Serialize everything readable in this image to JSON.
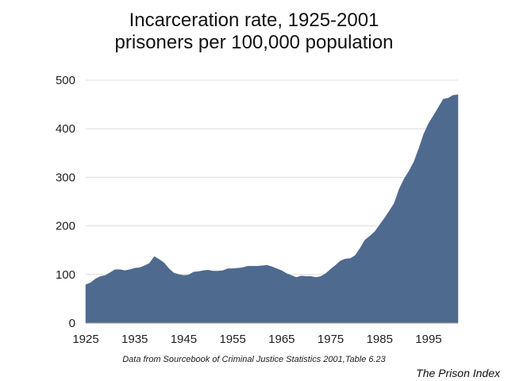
{
  "chart_data": {
    "type": "area",
    "title": "Incarceration rate, 1925-2001",
    "subtitle": "prisoners per 100,000 population",
    "xlim": [
      1925,
      2001
    ],
    "ylim": [
      0,
      500
    ],
    "x_ticks": [
      "1925",
      "1935",
      "1945",
      "1955",
      "1965",
      "1975",
      "1985",
      "1995"
    ],
    "y_ticks": [
      "0",
      "100",
      "200",
      "300",
      "400",
      "500"
    ],
    "grid": "horizontal",
    "fill_color": "#4f6a8f",
    "grid_color": "#dcdcdc",
    "x": [
      1925,
      1926,
      1927,
      1928,
      1929,
      1930,
      1931,
      1932,
      1933,
      1934,
      1935,
      1936,
      1937,
      1938,
      1939,
      1940,
      1941,
      1942,
      1943,
      1944,
      1945,
      1946,
      1947,
      1948,
      1949,
      1950,
      1951,
      1952,
      1953,
      1954,
      1955,
      1956,
      1957,
      1958,
      1959,
      1960,
      1961,
      1962,
      1963,
      1964,
      1965,
      1966,
      1967,
      1968,
      1969,
      1970,
      1971,
      1972,
      1973,
      1974,
      1975,
      1976,
      1977,
      1978,
      1979,
      1980,
      1981,
      1982,
      1983,
      1984,
      1985,
      1986,
      1987,
      1988,
      1989,
      1990,
      1991,
      1992,
      1993,
      1994,
      1995,
      1996,
      1997,
      1998,
      1999,
      2000,
      2001
    ],
    "values": [
      79,
      83,
      91,
      96,
      98,
      104,
      110,
      110,
      108,
      110,
      113,
      114,
      118,
      123,
      137,
      131,
      124,
      112,
      103,
      100,
      98,
      99,
      105,
      106,
      108,
      109,
      107,
      107,
      108,
      112,
      112,
      113,
      114,
      117,
      117,
      117,
      118,
      119,
      116,
      112,
      108,
      102,
      98,
      94,
      97,
      96,
      96,
      94,
      96,
      102,
      111,
      119,
      128,
      132,
      133,
      139,
      154,
      171,
      179,
      188,
      202,
      216,
      231,
      247,
      276,
      297,
      313,
      332,
      359,
      389,
      411,
      427,
      444,
      461,
      463,
      469,
      470
    ]
  },
  "footer": {
    "source": "Data from Sourcebook of Criminal Justice Statistics 2001,Table 6.23",
    "brand": "The Prison Index"
  }
}
